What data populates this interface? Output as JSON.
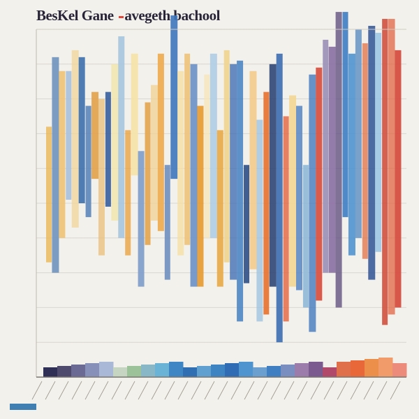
{
  "page": {
    "title_left": "BesKel Gane",
    "title_right": "avegeth bachool"
  },
  "chart_data": {
    "type": "bar",
    "title": "BesKel Gane ‘-avegeth bachool",
    "ylabel": "",
    "xlabel": "",
    "ylim": [
      0,
      10
    ],
    "yticks": [
      1,
      2,
      3,
      4,
      5,
      6,
      7,
      8,
      9,
      10
    ],
    "grid": true,
    "legend": "none",
    "series": [
      {
        "values": [
          [
            3.3,
            7.2,
            "#e9b552"
          ],
          [
            3.0,
            9.2,
            "#6f93bd"
          ],
          [
            4.0,
            8.8,
            "#efc274"
          ],
          [
            5.1,
            8.8,
            "#a7c0dc"
          ],
          [
            4.3,
            9.4,
            "#f1d59a"
          ],
          [
            5.0,
            9.2,
            "#3d6fad"
          ],
          [
            4.6,
            7.8,
            "#5c86bb"
          ],
          [
            5.7,
            8.2,
            "#e3a14a"
          ],
          [
            3.5,
            8.0,
            "#e9c07e"
          ],
          [
            4.9,
            8.2,
            "#365ea0"
          ],
          [
            4.5,
            9.0,
            "#f2e6b0"
          ],
          [
            4.0,
            9.8,
            "#a5c5e0"
          ],
          [
            3.5,
            7.1,
            "#eaa23e"
          ],
          [
            5.8,
            9.3,
            "#f6e2a8"
          ],
          [
            2.6,
            6.5,
            "#7d9ccb"
          ],
          [
            3.8,
            7.9,
            "#e3a44f"
          ],
          [
            4.5,
            8.4,
            "#f0d296"
          ],
          [
            4.2,
            9.3,
            "#f0aa4c"
          ],
          [
            2.8,
            6.1,
            "#6f8fbf"
          ],
          [
            5.7,
            10.4,
            "#3e75bd"
          ],
          [
            3.5,
            8.8,
            "#f5dfa4"
          ],
          [
            3.8,
            9.3,
            "#eec27a"
          ],
          [
            2.6,
            9.0,
            "#6a90c8"
          ],
          [
            2.6,
            7.8,
            "#e8992e"
          ],
          [
            4.0,
            8.7,
            "#f6e6b8"
          ],
          [
            4.0,
            9.3,
            "#afcde6"
          ],
          [
            2.6,
            7.1,
            "#e8a946"
          ],
          [
            3.3,
            9.4,
            "#f0d38e"
          ],
          [
            2.8,
            9.0,
            "#3f6eb4"
          ],
          [
            1.6,
            9.1,
            "#4e86c4"
          ],
          [
            2.7,
            6.1,
            "#2f4f88"
          ],
          [
            3.1,
            8.8,
            "#f4cb8c"
          ],
          [
            1.6,
            7.4,
            "#9cc3e2"
          ],
          [
            1.8,
            8.2,
            "#e8702e"
          ],
          [
            2.6,
            9.0,
            "#2f4675"
          ],
          [
            1.0,
            9.3,
            "#3c6db2"
          ],
          [
            1.6,
            7.5,
            "#e3603a"
          ],
          [
            2.6,
            8.1,
            "#f3d794"
          ],
          [
            2.5,
            7.8,
            "#5e8bc6"
          ],
          [
            2.0,
            6.1,
            "#8fb8d7"
          ],
          [
            1.3,
            8.7,
            "#3f77bd"
          ],
          [
            2.2,
            8.9,
            "#d74a3a"
          ],
          [
            3.0,
            9.7,
            "#9a8fb5"
          ],
          [
            3.0,
            9.5,
            "#8a6fa3"
          ],
          [
            2.0,
            10.5,
            "#5f4d7f"
          ],
          [
            4.6,
            10.5,
            "#3e7dc4"
          ],
          [
            3.5,
            9.3,
            "#4f94cf"
          ],
          [
            4.0,
            10.0,
            "#6b98c6"
          ],
          [
            3.4,
            9.6,
            "#e4764a"
          ],
          [
            2.8,
            10.1,
            "#3a5c9a"
          ],
          [
            3.6,
            9.9,
            "#9cc6e4"
          ],
          [
            1.5,
            10.3,
            "#d2503e"
          ],
          [
            1.8,
            10.3,
            "#e06a49"
          ],
          [
            2.0,
            9.4,
            "#d5463a"
          ]
        ]
      }
    ],
    "base_strip": [
      "#2f2e54",
      "#4e4a6e",
      "#6b6a95",
      "#8790b8",
      "#a9b8d6",
      "#c5d5c1",
      "#9cc29a",
      "#88b8c8",
      "#6ab2d6",
      "#3f86c4",
      "#2f6fb2",
      "#5fa0d0",
      "#3e83c2",
      "#2f6cb4",
      "#4f93cf",
      "#6b9fd0",
      "#3f7fc2",
      "#7a8fbf",
      "#9b7cab",
      "#7a5a8f",
      "#b14a6a",
      "#e0704c",
      "#e8683a",
      "#ec8f4a",
      "#f29b6a",
      "#ec8a7c"
    ]
  }
}
